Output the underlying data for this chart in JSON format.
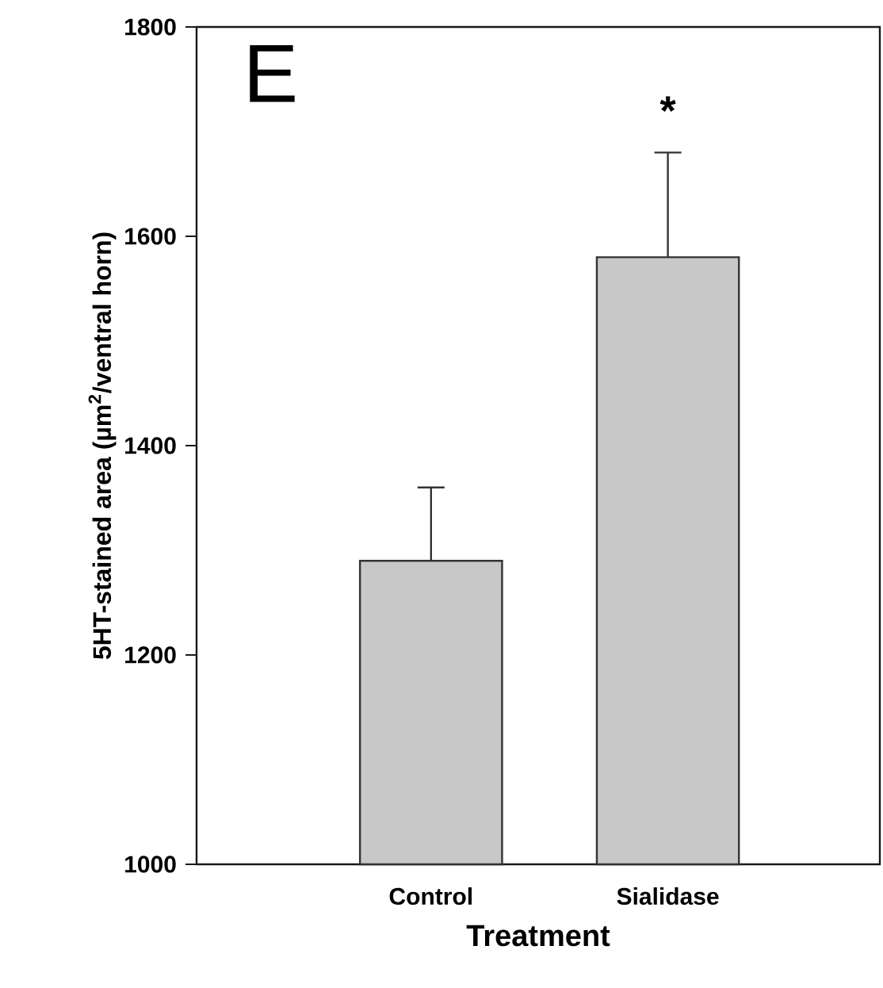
{
  "chart_data": {
    "type": "bar",
    "categories": [
      "Control",
      "Sialidase"
    ],
    "values": [
      1290,
      1580
    ],
    "errors": [
      70,
      100
    ],
    "color": "#c8c8c8",
    "xlabel": "Treatment",
    "ylabel": "5HT-stained area (µm$^{2}$/ventral horn)",
    "ylim": [
      1000,
      1800
    ],
    "yticks": [
      1000,
      1200,
      1400,
      1600,
      1800
    ],
    "annotations": [
      "E",
      "*"
    ]
  }
}
